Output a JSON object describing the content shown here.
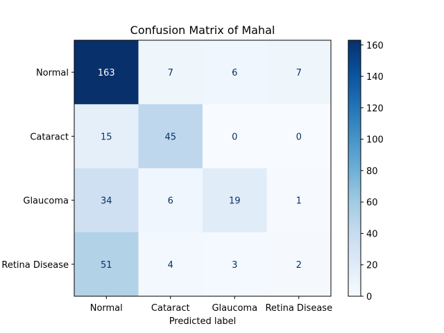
{
  "chart_data": {
    "type": "heatmap",
    "title": "Confusion Matrix of Mahal",
    "xlabel": "Predicted label",
    "ylabel": "",
    "x_categories": [
      "Normal",
      "Cataract",
      "Glaucoma",
      "Retina Disease"
    ],
    "y_categories": [
      "Normal",
      "Cataract",
      "Glaucoma",
      "Retina Disease"
    ],
    "matrix": [
      [
        163,
        7,
        6,
        7
      ],
      [
        15,
        45,
        0,
        0
      ],
      [
        34,
        6,
        19,
        1
      ],
      [
        51,
        4,
        3,
        2
      ]
    ],
    "colormap": "Blues",
    "color_range": [
      0,
      163
    ],
    "colorbar_ticks": [
      0,
      20,
      40,
      60,
      80,
      100,
      120,
      140,
      160
    ],
    "grid": false,
    "legend": "colorbar-right"
  }
}
